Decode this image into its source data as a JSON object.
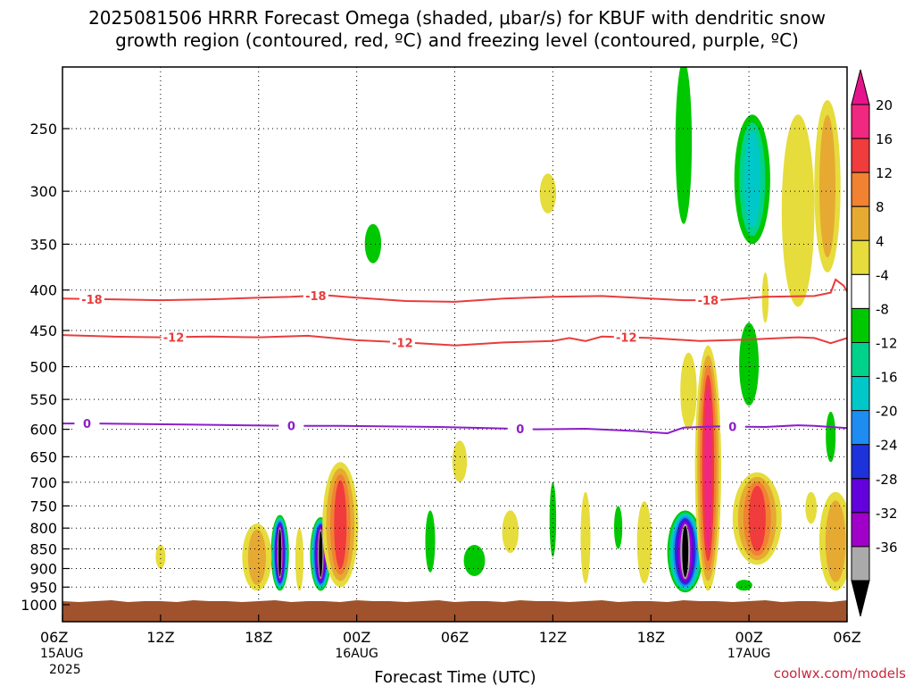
{
  "title_line1": "2025081506 HRRR Forecast Omega (shaded, μbar/s) for KBUF with dendritic snow",
  "title_line2": "growth region (contoured, red, ºC) and freezing level (contoured, purple, ºC)",
  "credit": "coolwx.com/models",
  "chart_data": {
    "type": "contour",
    "xlabel": "Forecast Time (UTC)",
    "ylabel": "",
    "pressure_axis": "log",
    "x_range_hours": [
      0,
      48
    ],
    "y_range_hPa": [
      200,
      1000
    ],
    "x_ticks": [
      {
        "hour": 0,
        "label": "06Z",
        "sub": "15AUG",
        "sub2": "2025"
      },
      {
        "hour": 6,
        "label": "12Z",
        "sub": "",
        "sub2": ""
      },
      {
        "hour": 12,
        "label": "18Z",
        "sub": "",
        "sub2": ""
      },
      {
        "hour": 18,
        "label": "00Z",
        "sub": "16AUG",
        "sub2": ""
      },
      {
        "hour": 24,
        "label": "06Z",
        "sub": "",
        "sub2": ""
      },
      {
        "hour": 30,
        "label": "12Z",
        "sub": "",
        "sub2": ""
      },
      {
        "hour": 36,
        "label": "18Z",
        "sub": "",
        "sub2": ""
      },
      {
        "hour": 42,
        "label": "00Z",
        "sub": "17AUG",
        "sub2": ""
      },
      {
        "hour": 48,
        "label": "06Z",
        "sub": "",
        "sub2": ""
      }
    ],
    "y_ticks": [
      {
        "p": 250,
        "label": "250"
      },
      {
        "p": 300,
        "label": "300"
      },
      {
        "p": 350,
        "label": "350"
      },
      {
        "p": 400,
        "label": "400"
      },
      {
        "p": 450,
        "label": "450"
      },
      {
        "p": 500,
        "label": "500"
      },
      {
        "p": 550,
        "label": "550"
      },
      {
        "p": 600,
        "label": "600"
      },
      {
        "p": 650,
        "label": "650"
      },
      {
        "p": 700,
        "label": "700"
      },
      {
        "p": 750,
        "label": "750"
      },
      {
        "p": 800,
        "label": "800"
      },
      {
        "p": 850,
        "label": "850"
      },
      {
        "p": 900,
        "label": "900"
      },
      {
        "p": 950,
        "label": "950"
      },
      {
        "p": 1000,
        "label": "1000"
      }
    ],
    "colorbar": {
      "levels": [
        {
          "label": "20",
          "color": "#f0287f"
        },
        {
          "label": "16",
          "color": "#f03c3c"
        },
        {
          "label": "12",
          "color": "#f08232"
        },
        {
          "label": "8",
          "color": "#e6aa32"
        },
        {
          "label": "4",
          "color": "#e6dc3c"
        },
        {
          "label": "-4",
          "color": "#ffffff"
        },
        {
          "label": "-8",
          "color": "#00c800"
        },
        {
          "label": "-12",
          "color": "#00d28c"
        },
        {
          "label": "-16",
          "color": "#00c8c8"
        },
        {
          "label": "-20",
          "color": "#1e8cf0"
        },
        {
          "label": "-24",
          "color": "#1e32dc"
        },
        {
          "label": "-28",
          "color": "#6400dc"
        },
        {
          "label": "-32",
          "color": "#a000c8"
        },
        {
          "label": "-36",
          "color": "#aaaaaa"
        },
        {
          "label": "",
          "color": "#000000"
        }
      ],
      "top_arrow_color": "#e6148c",
      "bottom_arrow_color": "#000000"
    },
    "contours": [
      {
        "name": "-18",
        "color": "#e83c3c",
        "labels_at_hours": [
          1.8,
          15.5,
          39.5
        ],
        "points": [
          [
            0,
            410
          ],
          [
            3,
            411
          ],
          [
            6,
            412
          ],
          [
            9,
            411
          ],
          [
            12,
            409
          ],
          [
            14,
            408
          ],
          [
            16,
            406
          ],
          [
            18,
            409
          ],
          [
            21,
            413
          ],
          [
            24,
            414
          ],
          [
            27,
            410
          ],
          [
            30,
            408
          ],
          [
            33,
            407
          ],
          [
            36,
            410
          ],
          [
            38,
            412
          ],
          [
            40,
            412
          ],
          [
            43,
            408
          ],
          [
            46,
            407
          ],
          [
            47,
            403
          ],
          [
            47.3,
            388
          ],
          [
            47.8,
            395
          ],
          [
            48,
            402
          ]
        ]
      },
      {
        "name": "-12",
        "color": "#e83c3c",
        "labels_at_hours": [
          6.8,
          20.8,
          34.5
        ],
        "points": [
          [
            0,
            456
          ],
          [
            3,
            458
          ],
          [
            6,
            459
          ],
          [
            9,
            458
          ],
          [
            12,
            459
          ],
          [
            15,
            457
          ],
          [
            18,
            463
          ],
          [
            21,
            466
          ],
          [
            24,
            470
          ],
          [
            27,
            466
          ],
          [
            30,
            464
          ],
          [
            31,
            460
          ],
          [
            32,
            464
          ],
          [
            33,
            458
          ],
          [
            36,
            460
          ],
          [
            39,
            464
          ],
          [
            42,
            462
          ],
          [
            45,
            459
          ],
          [
            46,
            460
          ],
          [
            47,
            467
          ],
          [
            48,
            460
          ]
        ]
      },
      {
        "name": "0",
        "color": "#8c1ec8",
        "labels_at_hours": [
          1.5,
          14.0,
          28.0,
          41.0
        ],
        "points": [
          [
            0,
            590
          ],
          [
            2,
            590
          ],
          [
            5,
            591
          ],
          [
            8,
            592
          ],
          [
            11,
            593
          ],
          [
            14,
            594
          ],
          [
            17,
            594
          ],
          [
            20,
            595
          ],
          [
            23,
            596
          ],
          [
            26,
            598
          ],
          [
            29,
            600
          ],
          [
            32,
            599
          ],
          [
            35,
            603
          ],
          [
            37,
            607
          ],
          [
            38,
            597
          ],
          [
            40,
            595
          ],
          [
            43,
            596
          ],
          [
            45,
            593
          ],
          [
            46,
            594
          ],
          [
            48,
            598
          ]
        ]
      }
    ],
    "omega_features": [
      {
        "hour": 13.3,
        "p_bottom": 960,
        "p_top": 770,
        "width_hours": 1.1,
        "peak": -40
      },
      {
        "hour": 15.8,
        "p_bottom": 960,
        "p_top": 775,
        "width_hours": 1.3,
        "peak": -40
      },
      {
        "hour": 38.1,
        "p_bottom": 965,
        "p_top": 760,
        "width_hours": 2.2,
        "peak": -40
      },
      {
        "hour": 11.9,
        "p_bottom": 960,
        "p_top": 790,
        "width_hours": 1.8,
        "peak": 10
      },
      {
        "hour": 14.5,
        "p_bottom": 960,
        "p_top": 800,
        "width_hours": 0.5,
        "peak": 6
      },
      {
        "hour": 17.0,
        "p_bottom": 950,
        "p_top": 660,
        "width_hours": 2.2,
        "peak": 16
      },
      {
        "hour": 6.0,
        "p_bottom": 900,
        "p_top": 840,
        "width_hours": 0.6,
        "peak": 6
      },
      {
        "hour": 19.0,
        "p_bottom": 370,
        "p_top": 330,
        "width_hours": 1.0,
        "peak": -8
      },
      {
        "hour": 22.5,
        "p_bottom": 910,
        "p_top": 760,
        "width_hours": 0.6,
        "peak": -8
      },
      {
        "hour": 25.2,
        "p_bottom": 920,
        "p_top": 840,
        "width_hours": 1.3,
        "peak": -8
      },
      {
        "hour": 24.3,
        "p_bottom": 700,
        "p_top": 620,
        "width_hours": 0.9,
        "peak": 6
      },
      {
        "hour": 27.4,
        "p_bottom": 860,
        "p_top": 760,
        "width_hours": 1.0,
        "peak": 6
      },
      {
        "hour": 29.7,
        "p_bottom": 320,
        "p_top": 285,
        "width_hours": 1.0,
        "peak": 6
      },
      {
        "hour": 30.0,
        "p_bottom": 870,
        "p_top": 700,
        "width_hours": 0.4,
        "peak": -8
      },
      {
        "hour": 32.0,
        "p_bottom": 940,
        "p_top": 720,
        "width_hours": 0.6,
        "peak": 6
      },
      {
        "hour": 34.0,
        "p_bottom": 850,
        "p_top": 750,
        "width_hours": 0.5,
        "peak": -8
      },
      {
        "hour": 35.6,
        "p_bottom": 940,
        "p_top": 740,
        "width_hours": 0.9,
        "peak": 6
      },
      {
        "hour": 39.5,
        "p_bottom": 960,
        "p_top": 470,
        "width_hours": 1.6,
        "peak": 20
      },
      {
        "hour": 38.3,
        "p_bottom": 600,
        "p_top": 480,
        "width_hours": 1.0,
        "peak": 6
      },
      {
        "hour": 38.0,
        "p_bottom": 330,
        "p_top": 205,
        "width_hours": 1.0,
        "peak": -8
      },
      {
        "hour": 42.2,
        "p_bottom": 350,
        "p_top": 240,
        "width_hours": 2.2,
        "peak": -16
      },
      {
        "hour": 42.0,
        "p_bottom": 560,
        "p_top": 440,
        "width_hours": 1.2,
        "peak": -8
      },
      {
        "hour": 42.5,
        "p_bottom": 890,
        "p_top": 680,
        "width_hours": 3.0,
        "peak": 16
      },
      {
        "hour": 45.0,
        "p_bottom": 420,
        "p_top": 240,
        "width_hours": 2.0,
        "peak": 6
      },
      {
        "hour": 46.8,
        "p_bottom": 380,
        "p_top": 230,
        "width_hours": 1.6,
        "peak": 10
      },
      {
        "hour": 47.3,
        "p_bottom": 960,
        "p_top": 720,
        "width_hours": 2.0,
        "peak": 10
      },
      {
        "hour": 45.8,
        "p_bottom": 790,
        "p_top": 720,
        "width_hours": 0.7,
        "peak": 6
      },
      {
        "hour": 43.0,
        "p_bottom": 440,
        "p_top": 380,
        "width_hours": 0.4,
        "peak": 6
      },
      {
        "hour": 41.7,
        "p_bottom": 960,
        "p_top": 930,
        "width_hours": 1.0,
        "peak": -8
      },
      {
        "hour": 47.0,
        "p_bottom": 660,
        "p_top": 570,
        "width_hours": 0.6,
        "peak": -8
      }
    ]
  }
}
